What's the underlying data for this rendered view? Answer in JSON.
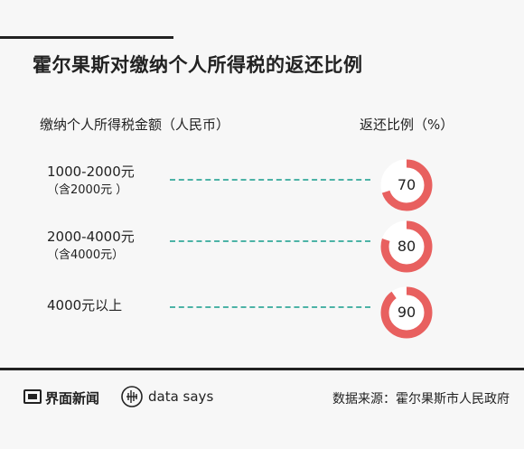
{
  "title": "霍尔果斯对缴纳个人所得税的返还比例",
  "columns": {
    "left": "缴纳个人所得税金额（人民币）",
    "right": "返还比例（%）"
  },
  "chart_data": {
    "type": "donut",
    "rows": [
      {
        "label": "1000-2000元",
        "sublabel": "（含2000元 ）",
        "value": 70,
        "display": "70"
      },
      {
        "label": "2000-4000元",
        "sublabel": "（含4000元）",
        "value": 80,
        "display": "80"
      },
      {
        "label": "4000元以上",
        "sublabel": "",
        "value": 90,
        "display": "90"
      }
    ],
    "max": 100
  },
  "colors": {
    "ring_fill": "#e8605f",
    "ring_track": "#ffffff",
    "dash": "#4cb3a6"
  },
  "footer": {
    "brand": "界面新闻",
    "tagline": "data says",
    "source": "数据来源：霍尔果斯市人民政府"
  }
}
